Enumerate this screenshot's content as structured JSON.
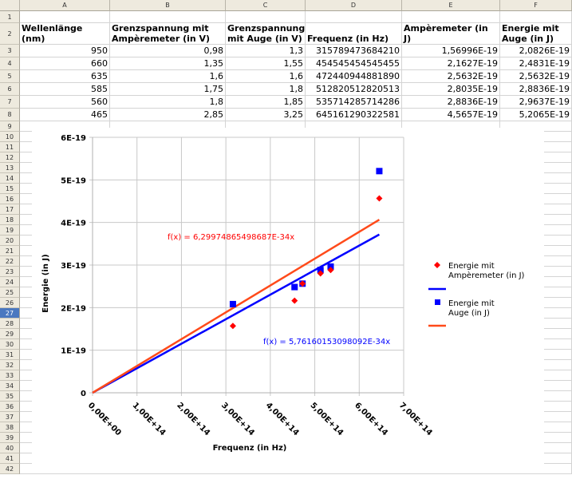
{
  "columns": [
    "A",
    "B",
    "C",
    "D",
    "E",
    "F"
  ],
  "rows": [
    "1",
    "2",
    "3",
    "4",
    "5",
    "6",
    "7",
    "8",
    "9",
    "10",
    "11",
    "12",
    "13",
    "14",
    "15",
    "16",
    "17",
    "18",
    "19",
    "20",
    "21",
    "22",
    "23",
    "24",
    "25",
    "26",
    "27",
    "28",
    "29",
    "30",
    "31",
    "32",
    "33",
    "34",
    "35",
    "36",
    "37",
    "38",
    "39",
    "40",
    "41",
    "42"
  ],
  "selected_row": "27",
  "table": {
    "headers": [
      "Wellenlänge (nm)",
      "Grenzspannung mit Ampèremeter (in V)",
      "Grenzspannung mit Auge (in V)",
      "Frequenz (in Hz)",
      "Energie mit Ampèremeter (in J)",
      "Energie mit Auge (in J)"
    ],
    "rows": [
      [
        "950",
        "0,98",
        "1,3",
        "315789473684210",
        "1,56996E-19",
        "2,0826E-19"
      ],
      [
        "660",
        "1,35",
        "1,55",
        "454545454545455",
        "2,1627E-19",
        "2,4831E-19"
      ],
      [
        "635",
        "1,6",
        "1,6",
        "472440944881890",
        "2,5632E-19",
        "2,5632E-19"
      ],
      [
        "585",
        "1,75",
        "1,8",
        "512820512820513",
        "2,8035E-19",
        "2,8836E-19"
      ],
      [
        "560",
        "1,8",
        "1,85",
        "535714285714286",
        "2,8836E-19",
        "2,9637E-19"
      ],
      [
        "465",
        "2,85",
        "3,25",
        "645161290322581",
        "4,5657E-19",
        "5,2065E-19"
      ]
    ]
  },
  "chart_data": {
    "type": "scatter",
    "xlabel": "Frequenz (in Hz)",
    "ylabel": "Energie (in J)",
    "xlim": [
      0,
      700000000000000.0
    ],
    "ylim": [
      0,
      6e-19
    ],
    "x_ticks": [
      0,
      100000000000000.0,
      200000000000000.0,
      300000000000000.0,
      400000000000000.0,
      500000000000000.0,
      600000000000000.0,
      700000000000000.0
    ],
    "x_tick_labels": [
      "0,00E+00",
      "1,00E+14",
      "2,00E+14",
      "3,00E+14",
      "4,00E+14",
      "5,00E+14",
      "6,00E+14",
      "7,00E+14"
    ],
    "y_ticks": [
      0,
      1e-19,
      2e-19,
      3e-19,
      4e-19,
      5e-19,
      6e-19
    ],
    "y_tick_labels": [
      "0",
      "1E-19",
      "2E-19",
      "3E-19",
      "4E-19",
      "5E-19",
      "6E-19"
    ],
    "grid": true,
    "legend_position": "right",
    "x": [
      315789473684210,
      454545454545455,
      472440944881890,
      512820512820513,
      535714285714286,
      645161290322581
    ],
    "series": [
      {
        "name": "Energie mit Ampèremeter (in J)",
        "marker": "diamond",
        "color": "#ff0000",
        "values": [
          1.56996e-19,
          2.1627e-19,
          2.5632e-19,
          2.8035e-19,
          2.8836e-19,
          4.5657e-19
        ],
        "trendline": {
          "slope": 5.76160153098092e-34,
          "color": "#0000ff",
          "label": "f(x) = 5,76160153098092E-34x",
          "label_color": "#0000ff"
        }
      },
      {
        "name": "Energie mit Auge (in J)",
        "marker": "square",
        "color": "#0000ff",
        "values": [
          2.0826e-19,
          2.4831e-19,
          2.5632e-19,
          2.8836e-19,
          2.9637e-19,
          5.2065e-19
        ],
        "trendline": {
          "slope": 6.29974865498687e-34,
          "color": "#ff4a1a",
          "label": "f(x) = 6,29974865498687E-34x",
          "label_color": "#ff0000"
        }
      }
    ],
    "legend": [
      {
        "label_line1": "Energie mit",
        "label_line2": "Ampèremeter (in J)"
      },
      {
        "label_line1": "Energie mit",
        "label_line2": "Auge (in J)"
      }
    ]
  }
}
